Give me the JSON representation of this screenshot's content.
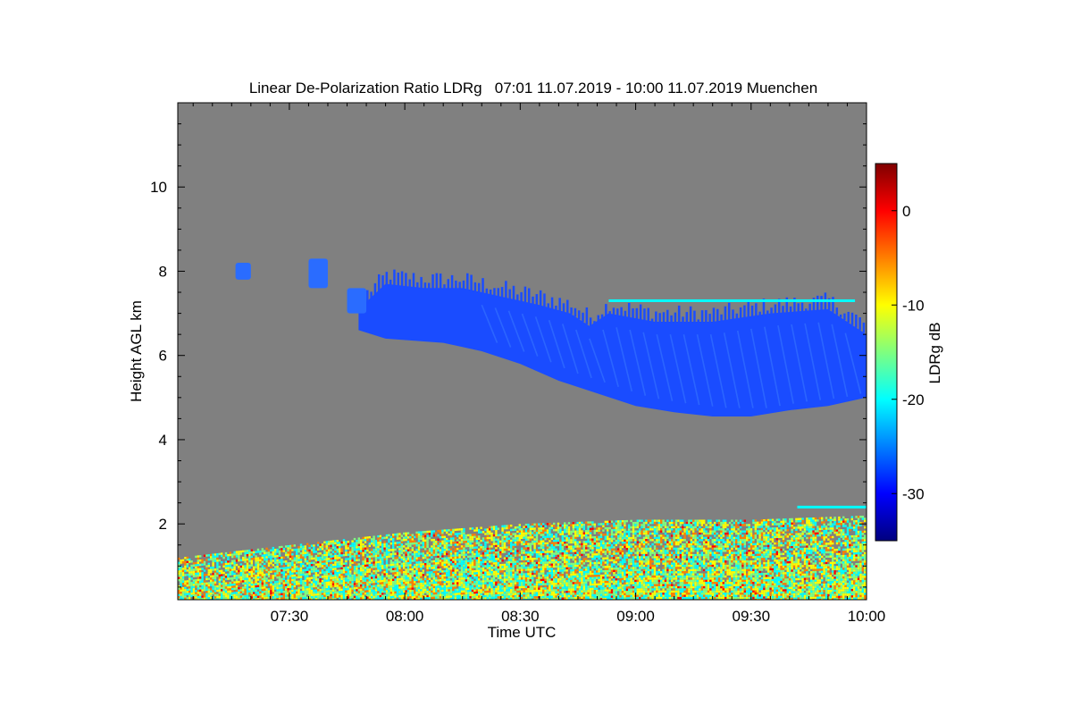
{
  "chart_data": {
    "type": "heatmap",
    "title": "Linear De-Polarization Ratio LDRg   07:01 11.07.2019 - 10:00 11.07.2019 Muenchen",
    "xlabel": "Time UTC",
    "ylabel": "Height AGL km",
    "colorbar_label": "LDRg dB",
    "x_range_minutes": [
      421,
      600
    ],
    "x_ticks": [
      {
        "minute": 450,
        "label": "07:30"
      },
      {
        "minute": 480,
        "label": "08:00"
      },
      {
        "minute": 510,
        "label": "08:30"
      },
      {
        "minute": 540,
        "label": "09:00"
      },
      {
        "minute": 570,
        "label": "09:30"
      },
      {
        "minute": 600,
        "label": "10:00"
      }
    ],
    "y_range_km": [
      0.2,
      12.0
    ],
    "y_ticks": [
      {
        "value": 2,
        "label": "2"
      },
      {
        "value": 4,
        "label": "4"
      },
      {
        "value": 6,
        "label": "6"
      },
      {
        "value": 8,
        "label": "8"
      },
      {
        "value": 10,
        "label": "10"
      }
    ],
    "color_range_db": [
      -35,
      5
    ],
    "color_ticks": [
      {
        "value": 0,
        "label": "0"
      },
      {
        "value": -10,
        "label": "-10"
      },
      {
        "value": -20,
        "label": "-20"
      },
      {
        "value": -30,
        "label": "-30"
      }
    ],
    "colors": {
      "no_data": "#808080",
      "ice_cloud": "#1a4cff",
      "jet": [
        "#00007f",
        "#0000ff",
        "#007fff",
        "#00ffff",
        "#7fff7f",
        "#ffff00",
        "#ff7f00",
        "#ff0000",
        "#7f0000"
      ]
    },
    "features": {
      "ice_cloud": {
        "ldr_db": -29,
        "base_km": [
          {
            "minute": 468,
            "value": 6.6
          },
          {
            "minute": 475,
            "value": 6.4
          },
          {
            "minute": 490,
            "value": 6.3
          },
          {
            "minute": 500,
            "value": 6.1
          },
          {
            "minute": 510,
            "value": 5.8
          },
          {
            "minute": 520,
            "value": 5.4
          },
          {
            "minute": 530,
            "value": 5.1
          },
          {
            "minute": 540,
            "value": 4.8
          },
          {
            "minute": 550,
            "value": 4.65
          },
          {
            "minute": 560,
            "value": 4.55
          },
          {
            "minute": 570,
            "value": 4.55
          },
          {
            "minute": 580,
            "value": 4.7
          },
          {
            "minute": 590,
            "value": 4.8
          },
          {
            "minute": 600,
            "value": 5.0
          }
        ],
        "top_km": [
          {
            "minute": 468,
            "value": 7.1
          },
          {
            "minute": 475,
            "value": 7.7
          },
          {
            "minute": 485,
            "value": 7.6
          },
          {
            "minute": 495,
            "value": 7.6
          },
          {
            "minute": 505,
            "value": 7.4
          },
          {
            "minute": 515,
            "value": 7.2
          },
          {
            "minute": 523,
            "value": 7.0
          },
          {
            "minute": 528,
            "value": 6.7
          },
          {
            "minute": 533,
            "value": 7.0
          },
          {
            "minute": 545,
            "value": 6.8
          },
          {
            "minute": 560,
            "value": 6.8
          },
          {
            "minute": 575,
            "value": 7.0
          },
          {
            "minute": 590,
            "value": 7.1
          },
          {
            "minute": 600,
            "value": 6.5
          }
        ]
      },
      "upper_fragments": [
        {
          "start_minute": 436,
          "end_minute": 440,
          "bottom_km": 7.8,
          "top_km": 8.2
        },
        {
          "start_minute": 455,
          "end_minute": 460,
          "bottom_km": 7.6,
          "top_km": 8.3
        },
        {
          "start_minute": 465,
          "end_minute": 470,
          "bottom_km": 7.0,
          "top_km": 7.6
        }
      ],
      "thin_layers": [
        {
          "start_minute": 533,
          "end_minute": 597,
          "height_km": 7.3,
          "ldr_db": -19
        },
        {
          "start_minute": 582,
          "end_minute": 600,
          "height_km": 2.4,
          "ldr_db": -22
        }
      ],
      "boundary_layer": {
        "top_km": [
          {
            "minute": 421,
            "value": 1.2
          },
          {
            "minute": 450,
            "value": 1.5
          },
          {
            "minute": 480,
            "value": 1.8
          },
          {
            "minute": 510,
            "value": 2.0
          },
          {
            "minute": 540,
            "value": 2.1
          },
          {
            "minute": 570,
            "value": 2.1
          },
          {
            "minute": 600,
            "value": 2.2
          }
        ],
        "ldr_db_range": [
          -22,
          -5
        ]
      }
    }
  }
}
